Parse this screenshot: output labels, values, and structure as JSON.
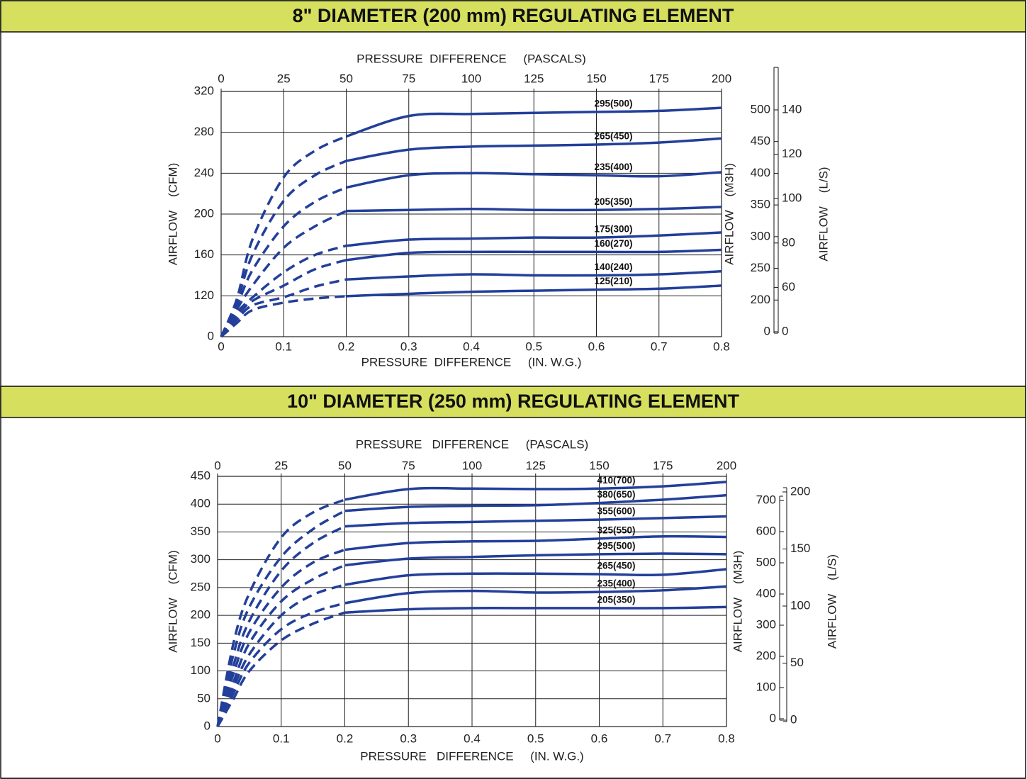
{
  "chart_data": [
    {
      "type": "line",
      "title": "8\" DIAMETER (200 mm) REGULATING ELEMENT",
      "xlabel": "PRESSURE  DIFFERENCE     (IN. W.G.)",
      "x2label": "PRESSURE  DIFFERENCE     (PASCALS)",
      "ylabel": "AIRFLOW    (CFM)",
      "y2label": "AIRFLOW    (M3H)",
      "y3label": "AIRFLOW    (L/S)",
      "xlim": [
        0,
        0.8
      ],
      "xticks": [
        0,
        0.1,
        0.2,
        0.3,
        0.4,
        0.5,
        0.6,
        0.7,
        0.8
      ],
      "x2lim": [
        0,
        200
      ],
      "x2ticks": [
        0,
        25,
        50,
        75,
        100,
        125,
        150,
        175,
        200
      ],
      "ylim": [
        0,
        320
      ],
      "yticks": [
        0,
        120,
        160,
        200,
        240,
        280,
        320
      ],
      "y2lim": [
        0,
        500
      ],
      "y2ticks": [
        0,
        200,
        250,
        300,
        350,
        400,
        450,
        500
      ],
      "y3lim": [
        0,
        140
      ],
      "y3ticks": [
        0,
        60,
        80,
        100,
        120,
        140
      ],
      "y_broken": true,
      "grid": true,
      "dash_until_x": 0.2,
      "x": [
        0,
        0.025,
        0.05,
        0.1,
        0.15,
        0.2,
        0.3,
        0.4,
        0.5,
        0.6,
        0.7,
        0.8
      ],
      "series": [
        {
          "name": "295(500)",
          "color": "#233f9a",
          "values": [
            0,
            110,
            175,
            236,
            262,
            276,
            296,
            298,
            299,
            300,
            301,
            304
          ]
        },
        {
          "name": "265(450)",
          "color": "#233f9a",
          "values": [
            0,
            100,
            160,
            213,
            238,
            252,
            263,
            266,
            267,
            268,
            270,
            274
          ]
        },
        {
          "name": "235(400)",
          "color": "#233f9a",
          "values": [
            0,
            90,
            145,
            188,
            212,
            226,
            238,
            240,
            239,
            238,
            237,
            241
          ]
        },
        {
          "name": "205(350)",
          "color": "#233f9a",
          "values": [
            0,
            80,
            130,
            167,
            188,
            203,
            204,
            205,
            204,
            204,
            205,
            207
          ]
        },
        {
          "name": "175(300)",
          "color": "#233f9a",
          "values": [
            0,
            70,
            115,
            143,
            160,
            169,
            175,
            176,
            177,
            177,
            179,
            182
          ]
        },
        {
          "name": "160(270)",
          "color": "#233f9a",
          "values": [
            0,
            60,
            105,
            130,
            146,
            155,
            162,
            163,
            163,
            163,
            163,
            165
          ]
        },
        {
          "name": "140(240)",
          "color": "#233f9a",
          "values": [
            0,
            50,
            92,
            116,
            129,
            136,
            139,
            141,
            140,
            140,
            141,
            144
          ]
        },
        {
          "name": "125(210)",
          "color": "#233f9a",
          "values": [
            0,
            40,
            78,
            100,
            112,
            119,
            122,
            124,
            125,
            126,
            127,
            130
          ]
        }
      ]
    },
    {
      "type": "line",
      "title": "10\" DIAMETER (250 mm) REGULATING ELEMENT",
      "xlabel": "PRESSURE   DIFFERENCE     (IN. W.G.)",
      "x2label": "PRESSURE   DIFFERENCE     (PASCALS)",
      "ylabel": "AIRFLOW    (CFM)",
      "y2label": "AIRFLOW    (M3H)",
      "y3label": "AIRFLOW    (L/S)",
      "xlim": [
        0,
        0.8
      ],
      "xticks": [
        0,
        0.1,
        0.2,
        0.3,
        0.4,
        0.5,
        0.6,
        0.7,
        0.8
      ],
      "x2lim": [
        0,
        200
      ],
      "x2ticks": [
        0,
        25,
        50,
        75,
        100,
        125,
        150,
        175,
        200
      ],
      "ylim": [
        0,
        450
      ],
      "yticks": [
        0,
        50,
        100,
        150,
        200,
        250,
        300,
        350,
        400,
        450
      ],
      "y2lim": [
        0,
        700
      ],
      "y2ticks": [
        0,
        100,
        200,
        300,
        400,
        500,
        600,
        700
      ],
      "y3lim": [
        0,
        200
      ],
      "y3ticks": [
        0,
        50,
        100,
        150,
        200
      ],
      "y_broken": false,
      "grid": true,
      "dash_until_x": 0.2,
      "x": [
        0,
        0.025,
        0.05,
        0.1,
        0.15,
        0.2,
        0.3,
        0.4,
        0.5,
        0.6,
        0.7,
        0.8
      ],
      "series": [
        {
          "name": "410(700)",
          "color": "#233f9a",
          "values": [
            0,
            150,
            240,
            340,
            385,
            408,
            427,
            428,
            427,
            428,
            432,
            440
          ]
        },
        {
          "name": "380(650)",
          "color": "#233f9a",
          "values": [
            0,
            130,
            215,
            305,
            355,
            388,
            395,
            397,
            398,
            402,
            408,
            416
          ]
        },
        {
          "name": "355(600)",
          "color": "#233f9a",
          "values": [
            0,
            110,
            190,
            280,
            330,
            360,
            366,
            368,
            370,
            372,
            375,
            378
          ]
        },
        {
          "name": "325(550)",
          "color": "#233f9a",
          "values": [
            0,
            95,
            170,
            250,
            295,
            318,
            330,
            333,
            334,
            338,
            342,
            341
          ]
        },
        {
          "name": "295(500)",
          "color": "#233f9a",
          "values": [
            0,
            80,
            150,
            225,
            265,
            290,
            302,
            305,
            308,
            310,
            311,
            310
          ]
        },
        {
          "name": "265(450)",
          "color": "#233f9a",
          "values": [
            0,
            70,
            130,
            200,
            237,
            255,
            272,
            275,
            275,
            274,
            273,
            283
          ]
        },
        {
          "name": "235(400)",
          "color": "#233f9a",
          "values": [
            0,
            60,
            115,
            175,
            205,
            222,
            240,
            244,
            241,
            242,
            245,
            252
          ]
        },
        {
          "name": "205(350)",
          "color": "#233f9a",
          "values": [
            0,
            50,
            100,
            155,
            185,
            205,
            211,
            213,
            213,
            213,
            213,
            215
          ]
        }
      ]
    }
  ]
}
